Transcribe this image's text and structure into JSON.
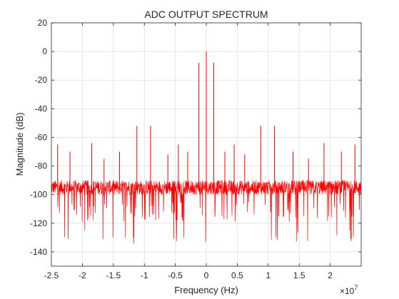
{
  "chart_data": {
    "type": "line",
    "title": "ADC OUTPUT SPECTRUM",
    "xlabel": "Frequency (Hz)",
    "ylabel": "Magnitude (dB)",
    "x_exponent_base": "×10",
    "x_exponent_power": "7",
    "xlim": [
      -2.5,
      2.5
    ],
    "ylim": [
      -150,
      20
    ],
    "x_ticks": [
      -2.5,
      -2,
      -1.5,
      -1,
      -0.5,
      0,
      0.5,
      1,
      1.5,
      2
    ],
    "x_tick_labels": [
      "-2.5",
      "-2",
      "-1.5",
      "-1",
      "-0.5",
      "0",
      "0.5",
      "1",
      "1.5",
      "2"
    ],
    "y_ticks": [
      20,
      0,
      -20,
      -40,
      -60,
      -80,
      -100,
      -120,
      -140
    ],
    "y_tick_labels": [
      "20",
      "0",
      "-20",
      "-40",
      "-60",
      "-80",
      "-100",
      "-120",
      "-140"
    ],
    "grid": true,
    "line_color": "#ff0000",
    "noise_floor": {
      "mean": -95,
      "upper": -88,
      "lower": -135
    },
    "spurs": [
      {
        "x": -2.4,
        "y": -65
      },
      {
        "x": -2.2,
        "y": -70
      },
      {
        "x": -1.85,
        "y": -64
      },
      {
        "x": -1.65,
        "y": -75
      },
      {
        "x": -1.4,
        "y": -70
      },
      {
        "x": -1.12,
        "y": -52
      },
      {
        "x": -0.9,
        "y": -52
      },
      {
        "x": -0.62,
        "y": -72
      },
      {
        "x": -0.45,
        "y": -65
      },
      {
        "x": -0.3,
        "y": -70
      },
      {
        "x": -0.12,
        "y": -8
      },
      {
        "x": 0,
        "y": 0
      },
      {
        "x": 0.12,
        "y": -8
      },
      {
        "x": 0.3,
        "y": -70
      },
      {
        "x": 0.45,
        "y": -65
      },
      {
        "x": 0.62,
        "y": -72
      },
      {
        "x": 0.88,
        "y": -52
      },
      {
        "x": 1.1,
        "y": -52
      },
      {
        "x": 1.4,
        "y": -70
      },
      {
        "x": 1.65,
        "y": -75
      },
      {
        "x": 1.9,
        "y": -64
      },
      {
        "x": 2.18,
        "y": -70
      },
      {
        "x": 2.4,
        "y": -65
      }
    ]
  }
}
